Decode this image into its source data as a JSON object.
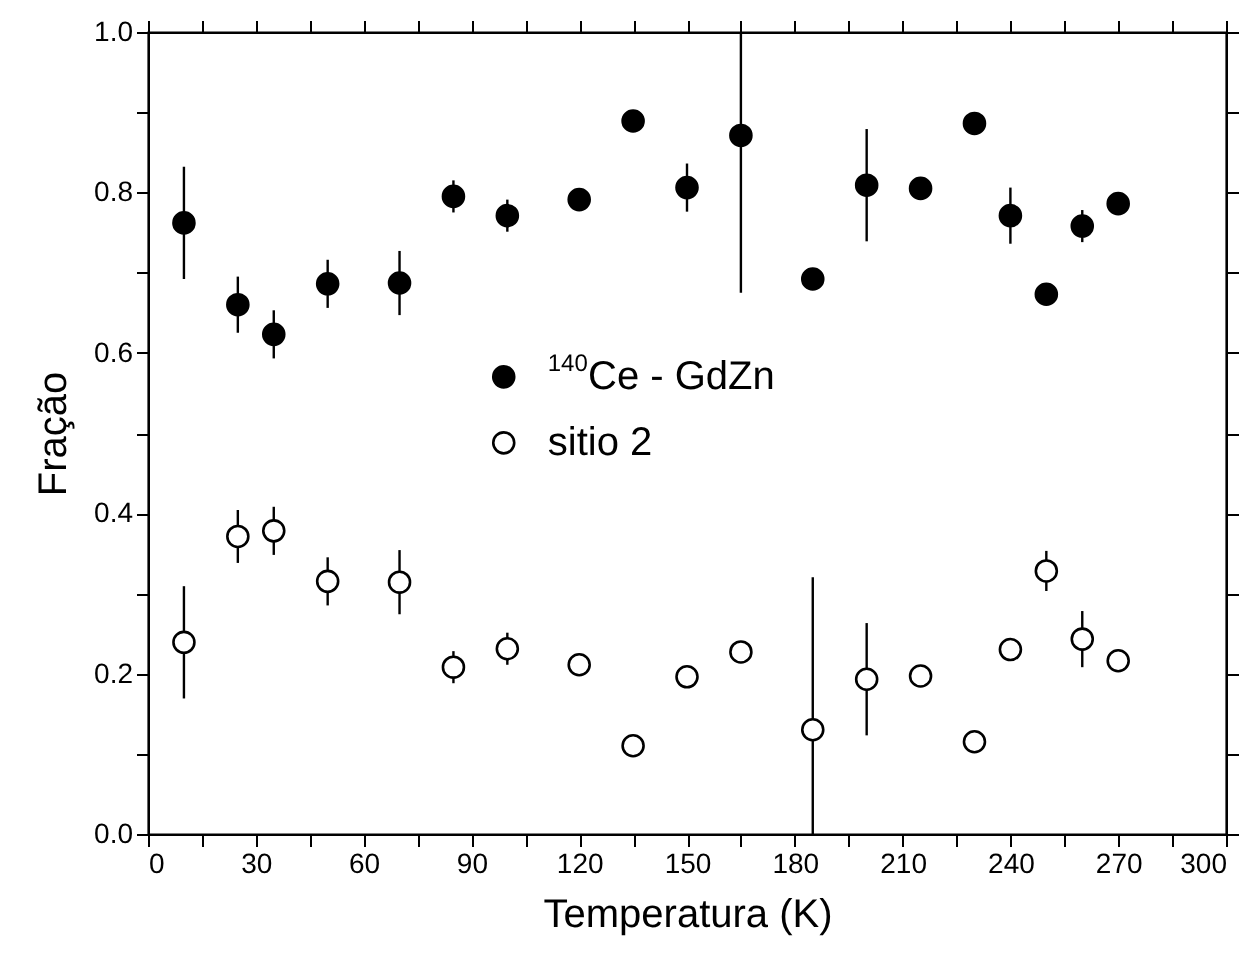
{
  "chart_data": {
    "type": "scatter",
    "xlabel": "Temperatura (K)",
    "ylabel": "Fração",
    "x": [
      10,
      25,
      35,
      50,
      70,
      85,
      100,
      120,
      135,
      150,
      165,
      185,
      200,
      215,
      230,
      240,
      250,
      260,
      270
    ],
    "series": [
      {
        "name": "$^{140}$Ce - GdZn",
        "color": "#000000",
        "marker": "circle",
        "values": [
          0.762,
          0.66,
          0.623,
          0.686,
          0.687,
          0.795,
          0.771,
          0.791,
          0.889,
          0.806,
          0.871,
          0.692,
          0.809,
          0.805,
          0.886,
          0.771,
          0.673,
          0.758,
          0.786
        ],
        "errors": [
          0.07,
          0.035,
          0.03,
          0.03,
          0.04,
          0.02,
          0.02,
          null,
          null,
          0.03,
          [
            0.675,
            1.0
          ],
          0.01,
          0.07,
          null,
          null,
          0.035,
          null,
          0.02,
          null
        ]
      },
      {
        "name": "sitio 2",
        "color": "#000000",
        "marker": "circle",
        "values": [
          0.239,
          0.371,
          0.378,
          0.315,
          0.314,
          0.208,
          0.231,
          0.211,
          0.11,
          0.196,
          0.227,
          0.13,
          0.193,
          0.197,
          0.115,
          0.23,
          0.328,
          0.243,
          0.216
        ],
        "errors": [
          0.07,
          0.033,
          0.03,
          0.03,
          0.04,
          0.02,
          0.02,
          null,
          null,
          null,
          null,
          [
            0.0,
            0.32
          ],
          0.07,
          null,
          null,
          null,
          0.025,
          0.035,
          null
        ]
      }
    ],
    "xlim": [
      0,
      300
    ],
    "xticks": [
      0,
      {
        "value": 15,
        "label": null
      },
      30,
      {
        "value": 45,
        "label": null
      },
      60,
      {
        "value": 75,
        "label": null
      },
      90,
      {
        "value": 105,
        "label": null
      },
      120,
      {
        "value": 135,
        "label": null
      },
      150,
      {
        "value": 165,
        "label": null
      },
      180,
      {
        "value": 195,
        "label": null
      },
      210,
      {
        "value": 225,
        "label": null
      },
      240,
      {
        "value": 255,
        "label": null
      },
      270,
      {
        "value": 285,
        "label": null
      },
      300
    ],
    "ylim": [
      0,
      1.0
    ],
    "yticks": [
      {
        "value": 0,
        "label": "0.0"
      },
      {
        "value": 0.1,
        "label": null
      },
      {
        "value": 0.2,
        "label": "0.2"
      },
      {
        "value": 0.3,
        "label": null
      },
      {
        "value": 0.4,
        "label": "0.4"
      },
      {
        "value": 0.5,
        "label": null
      },
      {
        "value": 0.6,
        "label": "0.6"
      },
      {
        "value": 0.7,
        "label": null
      },
      {
        "value": 0.8,
        "label": "0.8"
      },
      {
        "value": 0.9,
        "label": null
      },
      {
        "value": 1.0,
        "label": "1.0"
      }
    ],
    "grid": false,
    "legend": "center"
  }
}
